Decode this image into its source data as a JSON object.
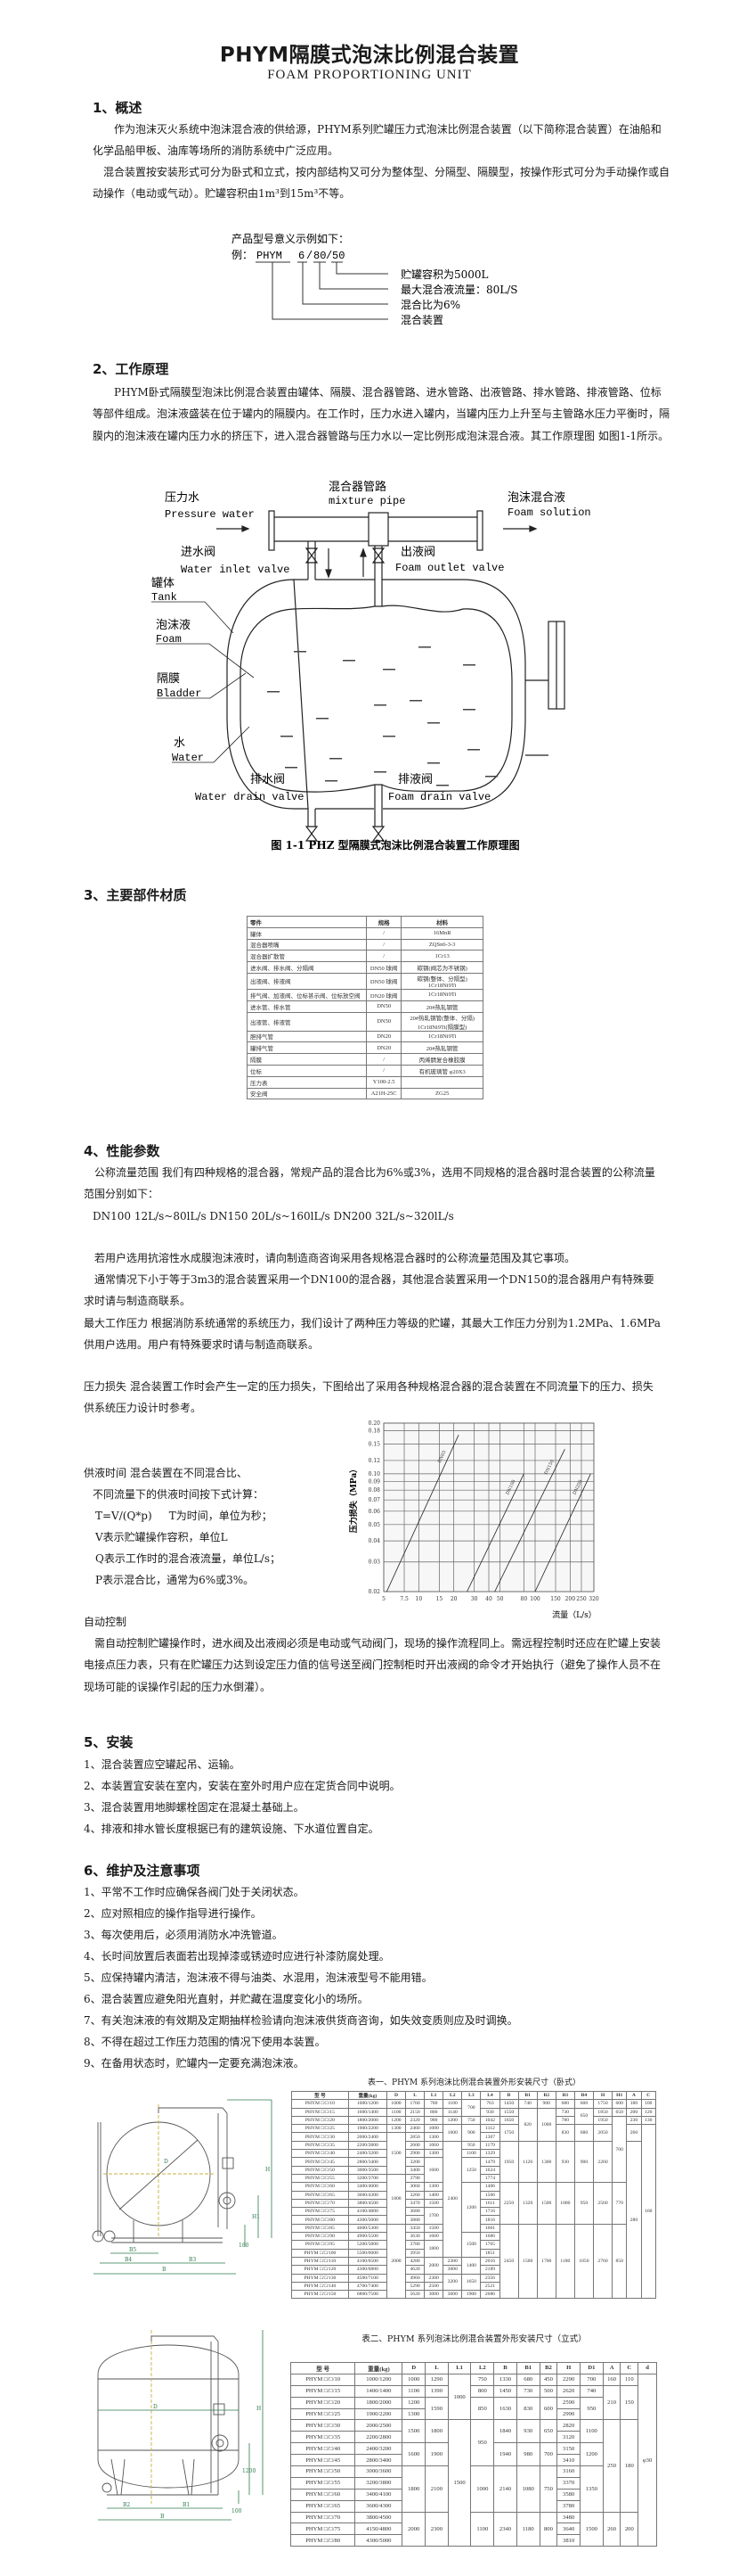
{
  "title": "PHYM隔膜式泡沫比例混合装置",
  "subtitle": "FOAM PROPORTIONING UNIT",
  "s1": {
    "heading": "1、概述",
    "p1": "作为泡沫灭火系统中泡沫混合液的供给源，PHYM系列贮罐压力式泡沫比例混合装置（以下简称混合装置）在油船和化学品船甲板、油库等场所的消防系统中广泛应用。",
    "p2": "混合装置按安装形式可分为卧式和立式，按内部结构又可分为整体型、分隔型、隔膜型，按操作形式可分为手动操作或自动操作（电动或气动）。贮罐容积由1m³到15m³不等。"
  },
  "model": {
    "intro": "产品型号意义示例如下：",
    "prefix": "例：",
    "parts": [
      "PHYM",
      "6",
      "80",
      "50"
    ],
    "sep": "/",
    "callouts": [
      "贮罐容积为5000L",
      "最大混合液流量：80L/S",
      "混合比为6%",
      "混合装置"
    ]
  },
  "s2": {
    "heading": "2、工作原理",
    "p": "PHYM卧式隔膜型泡沫比例混合装置由罐体、隔膜、混合器管路、进水管路、出液管路、排水管路、排液管路、位标等部件组成。泡沫液盛装在位于罐内的隔膜内。在工作时，压力水进入罐内，当罐内压力上升至与主管路水压力平衡时，隔膜内的泡沫液在罐内压力水的挤压下，进入混合器管路与压力水以一定比例形成泡沫混合液。其工作原理图 如图1-1所示。"
  },
  "diagram": {
    "pressure_water_cn": "压力水",
    "pressure_water_en": "Pressure water",
    "mixture_pipe_cn": "混合器管路",
    "mixture_pipe_en": "mixture pipe",
    "foam_solution_cn": "泡沫混合液",
    "foam_solution_en": "Foam solution",
    "inlet_valve_cn": "进水阀",
    "inlet_valve_en": "Water inlet valve",
    "outlet_valve_cn": "出液阀",
    "outlet_valve_en": "Foam outlet valve",
    "tank_cn": "罐体",
    "tank_en": "Tank",
    "foam_cn": "泡沫液",
    "foam_en": "Foam",
    "bladder_cn": "隔膜",
    "bladder_en": "Bladder",
    "water_cn": "水",
    "water_en": "Water",
    "water_drain_cn": "排水阀",
    "water_drain_en": "Water drain valve",
    "foam_drain_cn": "排液阀",
    "foam_drain_en": "Foam drain valve",
    "caption": "图 1-1 PHZ 型隔膜式泡沫比例混合装置工作原理图"
  },
  "s3": {
    "heading": "3、主要部件材质",
    "header": [
      "零件",
      "规格",
      "材料"
    ],
    "rows": [
      [
        "罐体",
        "/",
        "16MnR"
      ],
      [
        "混合器喷嘴",
        "/",
        "ZQSn6-3-3"
      ],
      [
        "混合器扩散管",
        "/",
        "1Cr13"
      ],
      [
        "进水阀、排水阀、分隔阀",
        "DN50 球阀",
        "碳钢(阀芯为不锈钢)"
      ],
      [
        "出液阀、排液阀",
        "DN50 球阀",
        "碳钢(整体、分隔型)\n1Cr18Ni9Ti"
      ],
      [
        "排气阀、加液阀、位标甚示阀、位标放空阀",
        "DN20 球阀",
        "1Cr18Ni9Ti"
      ],
      [
        "进水管、排水管",
        "DN50",
        "20#热轧钢管"
      ],
      [
        "出液管、排液管",
        "DN50",
        "20#热轧钢管(整体、分隔)\n1Cr18Ni9Ti(隔膜型)"
      ],
      [
        "胆排气管",
        "DN20",
        "1Cr18Ni9Ti"
      ],
      [
        "罐排气管",
        "DN20",
        "20#热轧钢管"
      ],
      [
        "隔膜",
        "/",
        "丙烯腈复合橡胶膜"
      ],
      [
        "位标",
        "/",
        "有机玻璃管 φ20X3"
      ],
      [
        "压力表",
        "Y100-2.5",
        ""
      ],
      [
        "安全阀",
        "A21H-25C",
        "ZG25"
      ]
    ]
  },
  "s4": {
    "heading": "4、性能参数",
    "p1": "公称流量范围  我们有四种规格的混合器，常规产品的混合比为6%或3%，选用不同规格的混合器时混合装置的公称流量范围分别如下：",
    "p2": "DN100  12L/s~80lL/s   DN150  20L/s~160lL/s   DN200  32L/s~320lL/s",
    "p3": "若用户选用抗溶性水成膜泡沫液时，请向制造商咨询采用各规格混合器时的公称流量范围及其它事项。",
    "p4": "通常情况下小于等于3m3的混合装置采用一个DN100的混合器，其他混合装置采用一个DN150的混合器用户有特殊要求时请与制造商联系。",
    "p5": "最大工作压力 根据消防系统通常的系统压力，我们设计了两种压力等级的贮罐，其最大工作压力分别为1.2MPa、1.6MPa供用户选用。用户有特殊要求时请与制造商联系。",
    "p6": "压力损失  混合装置工作时会产生一定的压力损失，下图给出了采用各种规格混合器的混合装置在不同流量下的压力、损失供系统压力设计时参考。",
    "supply": [
      "供液时间  混合装置在不同混合比、",
      "不同流量下的供液时间按下式计算：",
      "T=V/(Q*p)     T为时间，单位为秒；",
      "V表示贮罐操作容积，单位L",
      "Q表示工作时的混合液流量，单位L/s；",
      "P表示混合比，通常为6%或3%。"
    ],
    "auto_heading": "自动控制",
    "auto_p": "需自动控制贮罐操作时，进水阀及出液阀必须是电动或气动阀门，现场的操作流程同上。需远程控制时还应在贮罐上安装电接点压力表，只有在贮罐压力达到设定压力值的信号送至阀门控制柜时开出液阀的命令才开始执行（避免了操作人员不在现场可能的误操作引起的压力水倒灌）。"
  },
  "chart_data": {
    "type": "line",
    "title": "",
    "xlabel": "流量（L/s）",
    "ylabel": "压力损失（MPa）",
    "xscale": "log",
    "yscale": "log",
    "xlim": [
      5,
      320
    ],
    "ylim": [
      0.02,
      0.2
    ],
    "xticks": [
      5,
      7.5,
      10,
      15,
      20,
      30,
      40,
      50,
      80,
      100,
      150,
      200,
      250,
      320
    ],
    "yticks": [
      0.02,
      0.03,
      0.04,
      0.05,
      0.06,
      0.07,
      0.08,
      0.09,
      0.1,
      0.12,
      0.15,
      0.18,
      0.2
    ],
    "ytick_labels": [
      "0.02",
      "0.03",
      "0.04",
      "0.05",
      "0.06",
      "0.07",
      "0.08",
      "0.09",
      "0.10",
      "0.12",
      "0.15",
      "0.18",
      "0.20"
    ],
    "grid": true,
    "series": [
      {
        "name": "DN65",
        "x": [
          5.3,
          22
        ],
        "y": [
          0.02,
          0.17
        ]
      },
      {
        "name": "DN100",
        "x": [
          26,
          80
        ],
        "y": [
          0.02,
          0.1
        ]
      },
      {
        "name": "DN150",
        "x": [
          45,
          180
        ],
        "y": [
          0.02,
          0.14
        ]
      },
      {
        "name": "DN200",
        "x": [
          100,
          300
        ],
        "y": [
          0.02,
          0.1
        ]
      }
    ]
  },
  "s5": {
    "heading": "5、安装",
    "items": [
      "1、混合装置应空罐起吊、运输。",
      "2、本装置宜安装在室内，安装在室外时用户应在定货合同中说明。",
      "3、混合装置用地脚螺栓固定在混凝土基础上。",
      "4、排液和排水管长度根据已有的建筑设施、下水道位置自定。"
    ]
  },
  "s6": {
    "heading": "6、维护及注意事项",
    "items": [
      "1、平常不工作时应确保各阀门处于关闭状态。",
      "2、应对照相应的操作指导进行操作。",
      "3、每次使用后，必须用消防水冲洗管道。",
      "4、长时间放置后表面若出现掉漆或锈迹时应进行补漆防腐处理。",
      "5、应保持罐内清洁，泡沫液不得与油类、水混用，泡沫液型号不能用错。",
      "6、混合装置应避免阳光直射，并贮藏在温度变化小的场所。",
      "7、有关泡沫液的有效期及定期抽样检验请向泡沫液供货商咨询，如失效变质则应及时调换。",
      "8、不得在超过工作压力范围的情况下使用本装置。",
      "9、在备用状态时，贮罐内一定要充满泡沫液。"
    ]
  },
  "drawing1_labels": {
    "D": "D",
    "B": "B",
    "B3": "B3",
    "B4": "B4",
    "B5": "B5",
    "H": "H",
    "H1": "H1",
    "dim": "180"
  },
  "drawing2_labels": {
    "D": "D",
    "B": "B",
    "B1": "B1",
    "B2": "B2",
    "H": "H",
    "dim1": "1200",
    "dim2": "100"
  },
  "table1": {
    "title": "表一、PHYM 系列泡沫比例混合装置外形安装尺寸（卧式）",
    "header": [
      "型  号",
      "重量(kg)",
      "D",
      "L",
      "L1",
      "L2",
      "L3",
      "L4",
      "B",
      "B1",
      "B2",
      "B3",
      "B4",
      "H",
      "H1",
      "A",
      "C"
    ],
    "rows": [
      [
        "PHYM □/□/10",
        "1000/1200",
        "1000",
        "1760",
        "700",
        "1100",
        {
          "v": "700",
          "rs": 2
        },
        "763",
        "1450",
        "740",
        "900",
        "680",
        "600",
        "1750",
        "600",
        "180",
        "100"
      ],
      [
        "PHYM □/□/15",
        "1600/1400",
        "1100",
        "2150",
        "800",
        "1140",
        "930",
        "1550",
        {
          "v": "820",
          "rs": 4
        },
        {
          "v": "1000",
          "rs": 4
        },
        "730",
        {
          "v": "650",
          "rs": 2
        },
        "1850",
        "650",
        "200",
        "120"
      ],
      [
        "PHYM □/□/20",
        "1800/2000",
        "1200",
        "2320",
        "900",
        "1200",
        "750",
        "1042",
        "1650",
        "780",
        "1950",
        {
          "v": "700",
          "rs": 8
        },
        "230",
        "130"
      ],
      [
        "PHYM □/□/25",
        "1900/2200",
        "1300",
        "2460",
        "1000",
        {
          "v": "1600",
          "rs": 2
        },
        {
          "v": "900",
          "rs": 2
        },
        "1112",
        {
          "v": "1750",
          "rs": 2
        },
        {
          "v": "830",
          "rs": 2
        },
        {
          "v": "680",
          "rs": 2
        },
        {
          "v": "2050",
          "rs": 2
        },
        {
          "v": "260",
          "rs": 2
        },
        {
          "v": "160",
          "rs": 21
        }
      ],
      [
        "PHYM □/□/30",
        "2000/2400",
        {
          "v": "1500",
          "rs": 5
        },
        "2850",
        "1300",
        "1307"
      ],
      [
        "PHYM □/□/35",
        "2200/2800",
        "2600",
        "1060",
        {
          "v": "2400",
          "rs": 14
        },
        "950",
        "1179",
        {
          "v": "1950",
          "rs": 5
        },
        {
          "v": "1120",
          "rs": 5
        },
        {
          "v": "1300",
          "rs": 5
        },
        {
          "v": "930",
          "rs": 5
        },
        {
          "v": "900",
          "rs": 5
        },
        {
          "v": "2260",
          "rs": 5
        },
        {
          "v": "280",
          "rs": 19
        }
      ],
      [
        "PHYM □/□/40",
        "2400/3200",
        "2900",
        "1300",
        "1100",
        "1329"
      ],
      [
        "PHYM □/□/45",
        "2800/3400",
        "3200",
        {
          "v": "1600",
          "rs": 3
        },
        {
          "v": "1250",
          "rs": 3
        },
        "1479"
      ],
      [
        "PHYM □/□/50",
        "3000/3500",
        "3400",
        "1624"
      ],
      [
        "PHYM □/□/55",
        "3200/3700",
        {
          "v": "1800",
          "rs": 6
        },
        "3790",
        "1774"
      ],
      [
        "PHYM □/□/60",
        "3400/4000",
        "3060",
        "1300",
        {
          "v": "1200",
          "rs": 6
        },
        "1406",
        {
          "v": "2250",
          "rs": 5
        },
        {
          "v": "1320",
          "rs": 5
        },
        {
          "v": "1500",
          "rs": 5
        },
        {
          "v": "1080",
          "rs": 5
        },
        {
          "v": "950",
          "rs": 5
        },
        {
          "v": "2560",
          "rs": 5
        },
        {
          "v": "770",
          "rs": 5
        }
      ],
      [
        "PHYM □/□/65",
        "3600/4300",
        "3260",
        "1400",
        "1506"
      ],
      [
        "PHYM □/□/70",
        "3800/4500",
        "3470",
        "1500",
        "1611"
      ],
      [
        "PHYM □/□/75",
        "4100/4800",
        "3680",
        {
          "v": "1700",
          "rs": 2
        },
        "1716"
      ],
      [
        "PHYM □/□/80",
        "4300/5000",
        "3880",
        "1816"
      ],
      [
        "PHYM □/□/85",
        "4600/5300",
        {
          "v": "2000",
          "rs": 9
        },
        "3450",
        "1500",
        "1601",
        {
          "v": "2450",
          "rs": 9
        },
        {
          "v": "1500",
          "rs": 9
        },
        {
          "v": "1700",
          "rs": 9
        },
        {
          "v": "1180",
          "rs": 9
        },
        {
          "v": "1050",
          "rs": 9
        },
        {
          "v": "2760",
          "rs": 9
        },
        {
          "v": "850",
          "rs": 9
        }
      ],
      [
        "PHYM □/□/90",
        "4900/5500",
        "3630",
        "1600",
        {
          "v": "1500",
          "rs": 3
        },
        "1686"
      ],
      [
        "PHYM □/□/95",
        "5200/5800",
        "3780",
        {
          "v": "1800",
          "rs": 2
        },
        "1765"
      ],
      [
        "PHYM □/□/100",
        "5500/6000",
        "3950",
        "1851"
      ],
      [
        "PHYM □/□/110",
        "4100/6500",
        "4280",
        {
          "v": "2000",
          "rs": 2
        },
        "2300",
        {
          "v": "1400",
          "rs": 2
        },
        "2016"
      ],
      [
        "PHYM □/□/120",
        "4300/6800",
        "4620",
        "3000",
        "2189"
      ],
      [
        "PHYM □/□/130",
        "4500/7100",
        "4960",
        "2300",
        {
          "v": "3200",
          "rs": 2
        },
        {
          "v": "1650",
          "rs": 2
        },
        "2356"
      ],
      [
        "PHYM □/□/140",
        "4700/7400",
        "5290",
        "2500",
        "2521"
      ],
      [
        "PHYM □/□/150",
        "6800/7500",
        "5620",
        "3000",
        "3600",
        "1900",
        "2686"
      ]
    ]
  },
  "table2": {
    "title": "表二、PHYM 系列泡沫比例混合装置外形安装尺寸（立式）",
    "header": [
      "型  号",
      "重量(kg)",
      "D",
      "L",
      "L1",
      "L2",
      "B",
      "B1",
      "B2",
      "H",
      "D1",
      "A",
      "C",
      "d"
    ],
    "rows": [
      [
        "PHYM □/□/10",
        "1000/1200",
        "1000",
        "1290",
        {
          "v": "1000",
          "rs": 4
        },
        "750",
        "1330",
        "680",
        "450",
        "2290",
        "700",
        "160",
        "110",
        {
          "v": "φ30",
          "rs": 15
        }
      ],
      [
        "PHYM □/□/15",
        "1400/1400",
        "1100",
        "1390",
        "800",
        "1450",
        "730",
        "500",
        "2620",
        "740",
        {
          "v": "210",
          "rs": 3
        },
        {
          "v": "150",
          "rs": 3
        }
      ],
      [
        "PHYM □/□/20",
        "1800/2000",
        "1200",
        {
          "v": "1590",
          "rs": 2
        },
        {
          "v": "850",
          "rs": 2
        },
        {
          "v": "1630",
          "rs": 2
        },
        {
          "v": "830",
          "rs": 2
        },
        {
          "v": "600",
          "rs": 2
        },
        "2590",
        {
          "v": "950",
          "rs": 2
        }
      ],
      [
        "PHYM □/□/25",
        "1900/2200",
        "1300",
        "2990"
      ],
      [
        "PHYM □/□/30",
        "2000/2500",
        {
          "v": "1500",
          "rs": 2
        },
        {
          "v": "1800",
          "rs": 2
        },
        {
          "v": "1500",
          "rs": 11
        },
        {
          "v": "950",
          "rs": 4
        },
        {
          "v": "1840",
          "rs": 2
        },
        {
          "v": "930",
          "rs": 2
        },
        {
          "v": "650",
          "rs": 2
        },
        "2820",
        {
          "v": "1100",
          "rs": 2
        },
        {
          "v": "250",
          "rs": 8
        },
        {
          "v": "180",
          "rs": 8
        }
      ],
      [
        "PHYM □/□/35",
        "2200/2800",
        "3120"
      ],
      [
        "PHYM □/□/40",
        "2400/3200",
        {
          "v": "1600",
          "rs": 2
        },
        {
          "v": "1900",
          "rs": 2
        },
        {
          "v": "1940",
          "rs": 2
        },
        {
          "v": "980",
          "rs": 2
        },
        {
          "v": "700",
          "rs": 2
        },
        "3150",
        {
          "v": "1200",
          "rs": 2
        }
      ],
      [
        "PHYM □/□/45",
        "2800/3400",
        "3410"
      ],
      [
        "PHYM □/□/50",
        "3000/3600",
        {
          "v": "1800",
          "rs": 4
        },
        {
          "v": "2100",
          "rs": 4
        },
        {
          "v": "1000",
          "rs": 4
        },
        {
          "v": "2140",
          "rs": 4
        },
        {
          "v": "1080",
          "rs": 4
        },
        {
          "v": "750",
          "rs": 4
        },
        "3160",
        {
          "v": "1350",
          "rs": 4
        }
      ],
      [
        "PHYM □/□/55",
        "3200/3800",
        "3370"
      ],
      [
        "PHYM □/□/60",
        "3400/4100",
        "3580"
      ],
      [
        "PHYM □/□/65",
        "3600/4300",
        "3780"
      ],
      [
        "PHYM □/□/70",
        "3800/4500",
        {
          "v": "2000",
          "rs": 3
        },
        {
          "v": "2300",
          "rs": 3
        },
        {
          "v": "1100",
          "rs": 3
        },
        {
          "v": "2340",
          "rs": 3
        },
        {
          "v": "1180",
          "rs": 3
        },
        {
          "v": "800",
          "rs": 3
        },
        "3480",
        {
          "v": "1500",
          "rs": 3
        },
        {
          "v": "260",
          "rs": 3
        },
        {
          "v": "200",
          "rs": 3
        }
      ],
      [
        "PHYM □/□/75",
        "4150/4800",
        "3640"
      ],
      [
        "PHYM □/□/80",
        "4300/5000",
        "3810"
      ]
    ]
  }
}
